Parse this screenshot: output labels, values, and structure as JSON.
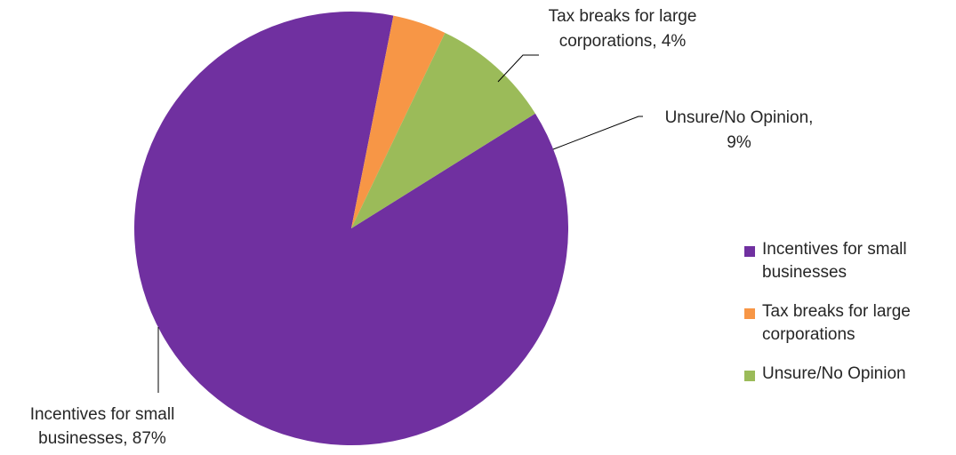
{
  "chart_data": {
    "type": "pie",
    "title": "",
    "slices": [
      {
        "label": "Incentives for small businesses",
        "value": 87,
        "color": "#7030a0",
        "data_label_lines": [
          "Incentives for small",
          "businesses, 87%"
        ]
      },
      {
        "label": "Tax breaks for large corporations",
        "value": 4,
        "color": "#f79646",
        "data_label_lines": [
          "Tax breaks for large",
          "corporations, 4%"
        ]
      },
      {
        "label": "Unsure/No Opinion",
        "value": 9,
        "color": "#9bbb59",
        "data_label_lines": [
          "Unsure/No Opinion,",
          "9%"
        ]
      }
    ],
    "legend": {
      "position": "right",
      "items": [
        {
          "lines": [
            "Incentives for small",
            "businesses"
          ],
          "color": "#7030a0"
        },
        {
          "lines": [
            "Tax breaks for large",
            "corporations"
          ],
          "color": "#f79646"
        },
        {
          "lines": [
            "Unsure/No Opinion"
          ],
          "color": "#9bbb59"
        }
      ]
    }
  }
}
